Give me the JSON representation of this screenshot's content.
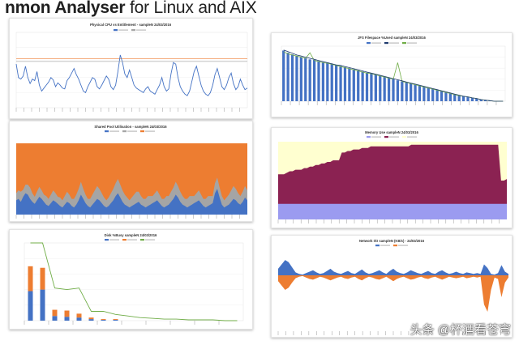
{
  "header": {
    "title_bold": "nmon Analyser",
    "title_rest": " for Linux and AIX"
  },
  "watermark": "头条 @杯酒看苍穹",
  "colors": {
    "blue": "#4472c4",
    "orange": "#ed7d31",
    "gray": "#a5a5a5",
    "green": "#70ad47",
    "maroon": "#8b2252",
    "cream": "#ffffd0",
    "lavender": "#9b9bf0"
  },
  "chart_data": [
    {
      "id": "cpu",
      "type": "line",
      "title": "Physical CPU vs Entitlement - sampleN 24/03/2016",
      "ylim": [
        0,
        100
      ],
      "series": [
        {
          "color": "#4472c4",
          "values": [
            58,
            40,
            38,
            42,
            55,
            40,
            32,
            38,
            36,
            48,
            30,
            22,
            26,
            30,
            34,
            40,
            37,
            28,
            33,
            30,
            26,
            25,
            36,
            40,
            46,
            52,
            44,
            38,
            30,
            22,
            20,
            28,
            34,
            40,
            38,
            28,
            25,
            30,
            36,
            42,
            38,
            28,
            24,
            30,
            48,
            70,
            60,
            45,
            40,
            50,
            40,
            30,
            26,
            24,
            22,
            20,
            25,
            28,
            22,
            20,
            18,
            24,
            30,
            40,
            28,
            22,
            25,
            45,
            60,
            58,
            40,
            28,
            22,
            18,
            16,
            22,
            35,
            48,
            55,
            42,
            30,
            22,
            18,
            16,
            20,
            30,
            44,
            52,
            40,
            28,
            24,
            30,
            40,
            46,
            32,
            24,
            28,
            38,
            30,
            24,
            26
          ]
        },
        {
          "color": "#a5a5a5",
          "values": [
            62,
            62,
            62,
            62,
            62,
            62,
            62,
            62,
            62,
            62,
            62,
            62,
            62,
            62,
            62,
            62,
            62,
            62,
            62,
            62,
            62,
            62,
            62,
            62,
            62,
            62,
            62,
            62,
            62,
            62,
            62,
            62,
            62,
            62,
            62,
            62,
            62,
            62,
            62,
            62,
            62,
            62,
            62,
            62,
            62,
            62,
            62,
            62,
            62,
            62,
            62,
            62,
            62,
            62,
            62,
            62,
            62,
            62,
            62,
            62,
            62,
            62,
            62,
            62,
            62,
            62,
            62,
            62,
            62,
            62,
            62,
            62,
            62,
            62,
            62,
            62,
            62,
            62,
            62,
            62,
            62,
            62,
            62,
            62,
            62,
            62,
            62,
            62,
            62,
            62,
            62,
            62,
            62,
            62,
            62,
            62,
            62,
            62,
            62,
            62,
            62
          ]
        }
      ]
    },
    {
      "id": "jfs",
      "type": "bar",
      "title": "JFS Filespace %Used sampleN 24/03/2016",
      "ylim": [
        0,
        100
      ],
      "bar_color": "#4472c4",
      "line_colors": [
        "#1f3b6e",
        "#70ad47"
      ],
      "values": [
        92,
        88,
        85,
        82,
        80,
        78,
        76,
        75,
        73,
        71,
        70,
        68,
        66,
        64,
        62,
        60,
        58,
        56,
        54,
        52,
        50,
        48,
        46,
        44,
        42,
        40,
        38,
        36,
        34,
        32,
        30,
        28,
        26,
        24,
        22,
        20,
        18,
        16,
        14,
        12,
        10,
        9,
        8,
        6,
        5,
        3,
        2,
        1,
        0,
        0,
        0
      ],
      "line_values": [
        93,
        90,
        87,
        84,
        82,
        80,
        78,
        76,
        74,
        72,
        70,
        68,
        66,
        65,
        63,
        61,
        59,
        57,
        55,
        53,
        51,
        49,
        47,
        45,
        43,
        41,
        39,
        37,
        35,
        33,
        31,
        29,
        27,
        25,
        23,
        21,
        19,
        17,
        15,
        13,
        11,
        9,
        8,
        6,
        5,
        3,
        2,
        1,
        0,
        0,
        0
      ],
      "line2_values": [
        90,
        86,
        84,
        82,
        80,
        78,
        88,
        74,
        72,
        70,
        69,
        67,
        65,
        63,
        61,
        59,
        57,
        55,
        53,
        51,
        50,
        48,
        46,
        44,
        42,
        40,
        70,
        36,
        34,
        32,
        30,
        28,
        26,
        24,
        22,
        20,
        18,
        16,
        14,
        12,
        10,
        9,
        8,
        6,
        5,
        3,
        2,
        1,
        0,
        0,
        0
      ]
    },
    {
      "id": "pool",
      "type": "area",
      "title": "Shared Pool Utilisation - sampleN 24/03/2016",
      "ylim": [
        0,
        100
      ],
      "colors": [
        "#4472c4",
        "#a5a5a5",
        "#ed7d31"
      ],
      "blue_values": [
        20,
        22,
        18,
        25,
        30,
        28,
        22,
        18,
        15,
        20,
        25,
        22,
        18,
        14,
        12,
        16,
        20,
        18,
        15,
        12,
        10,
        14,
        18,
        16,
        12,
        10,
        14,
        20,
        28,
        22,
        16,
        12,
        10,
        14,
        18,
        22,
        20,
        16,
        12,
        10,
        12,
        16,
        20,
        26,
        30,
        24,
        18,
        14,
        12,
        10,
        12,
        14,
        16,
        18,
        14,
        12,
        10,
        12,
        14,
        16,
        18,
        20,
        16,
        12,
        10,
        12,
        14,
        18,
        22,
        28,
        24,
        18,
        14,
        12,
        10,
        12,
        14,
        16,
        18,
        20,
        16,
        12,
        10,
        12,
        14,
        16,
        30,
        36,
        24,
        14,
        10,
        12,
        14,
        18,
        22,
        20,
        16,
        14,
        18,
        24,
        20
      ],
      "gray_values": [
        10,
        12,
        14,
        10,
        12,
        14,
        16,
        12,
        10,
        12,
        14,
        12,
        10,
        12,
        10,
        12,
        14,
        12,
        10,
        12,
        10,
        12,
        14,
        12,
        10,
        12,
        14,
        16,
        18,
        14,
        12,
        10,
        12,
        14,
        16,
        18,
        16,
        14,
        12,
        10,
        12,
        14,
        16,
        18,
        20,
        18,
        16,
        14,
        12,
        10,
        12,
        14,
        16,
        14,
        12,
        10,
        12,
        14,
        12,
        10,
        12,
        14,
        12,
        10,
        12,
        14,
        12,
        14,
        16,
        18,
        16,
        14,
        12,
        10,
        12,
        14,
        12,
        10,
        12,
        14,
        12,
        10,
        12,
        14,
        12,
        10,
        14,
        16,
        14,
        12,
        10,
        12,
        14,
        16,
        18,
        16,
        14,
        12,
        14,
        16,
        14
      ]
    },
    {
      "id": "mem",
      "type": "area",
      "title": "Memory Use sampleN 24/03/2016",
      "ylim": [
        0,
        100
      ],
      "colors": [
        "#9b9bf0",
        "#8b2252",
        "#ffffd0"
      ],
      "lavender_values": [
        20,
        20,
        20,
        20,
        20,
        20,
        20,
        20,
        20,
        20,
        20,
        20,
        20,
        20,
        20,
        20,
        20,
        20,
        20,
        20,
        20,
        20,
        20,
        20,
        20,
        20,
        20,
        20,
        20,
        20,
        20,
        20,
        20,
        20,
        20,
        20,
        20,
        20,
        20,
        20,
        20,
        20,
        20,
        20,
        20,
        20,
        20,
        20,
        20,
        20,
        20,
        20,
        20,
        20,
        20,
        20,
        20,
        20,
        20,
        20,
        20,
        20,
        20,
        20,
        20,
        20,
        20,
        20,
        20,
        20,
        20,
        20,
        20,
        20,
        20,
        20,
        20,
        20,
        20,
        20
      ],
      "maroon_total": [
        58,
        58,
        58,
        60,
        62,
        62,
        64,
        64,
        64,
        66,
        66,
        68,
        68,
        70,
        70,
        72,
        72,
        74,
        74,
        76,
        76,
        76,
        86,
        86,
        88,
        88,
        90,
        90,
        90,
        92,
        92,
        92,
        94,
        94,
        94,
        94,
        94,
        94,
        94,
        94,
        94,
        94,
        94,
        94,
        94,
        94,
        96,
        96,
        96,
        96,
        96,
        96,
        96,
        96,
        96,
        96,
        96,
        96,
        96,
        96,
        96,
        96,
        96,
        96,
        96,
        96,
        96,
        96,
        96,
        96,
        96,
        96,
        96,
        96,
        96,
        96,
        96,
        50,
        50,
        52
      ]
    },
    {
      "id": "disk",
      "type": "bar",
      "title": "Disk %Busy sampleN 24/03/2016",
      "ylim": [
        0,
        100
      ],
      "colors": [
        "#4472c4",
        "#ed7d31",
        "#70ad47"
      ],
      "blue_values": [
        38,
        40,
        6,
        5,
        4,
        2,
        1,
        1,
        0,
        0,
        0,
        0,
        0,
        0,
        0,
        0,
        0,
        0
      ],
      "orange_values": [
        32,
        28,
        8,
        8,
        5,
        2,
        1,
        1,
        0,
        0,
        0,
        0,
        0,
        0,
        0,
        0,
        0,
        0
      ],
      "line_values": [
        100,
        100,
        42,
        40,
        42,
        12,
        12,
        8,
        6,
        4,
        3,
        2,
        2,
        1,
        1,
        1,
        0,
        0
      ]
    },
    {
      "id": "net",
      "type": "area",
      "title": "Network I/O sampleN (KB/s) - 24/03/2016",
      "colors": [
        "#4472c4",
        "#ed7d31"
      ],
      "read_values": [
        18,
        30,
        42,
        36,
        22,
        8,
        4,
        2,
        6,
        10,
        14,
        8,
        4,
        6,
        12,
        18,
        10,
        6,
        4,
        8,
        12,
        6,
        4,
        10,
        16,
        8,
        4,
        6,
        10,
        14,
        8,
        4,
        12,
        18,
        10,
        6,
        4,
        8,
        14,
        10,
        6,
        4,
        8,
        12,
        6,
        4,
        10,
        14,
        8,
        4,
        6,
        10,
        6,
        4,
        8,
        6,
        4,
        6,
        4,
        30,
        20,
        4,
        2,
        6,
        28,
        10,
        4
      ],
      "write_values": [
        -16,
        -28,
        -40,
        -34,
        -20,
        -8,
        -4,
        -2,
        -6,
        -10,
        -12,
        -8,
        -4,
        -6,
        -10,
        -14,
        -10,
        -6,
        -4,
        -8,
        -10,
        -6,
        -4,
        -10,
        -14,
        -8,
        -4,
        -6,
        -10,
        -12,
        -8,
        -4,
        -10,
        -16,
        -10,
        -6,
        -4,
        -8,
        -12,
        -10,
        -6,
        -4,
        -8,
        -10,
        -6,
        -4,
        -8,
        -12,
        -8,
        -4,
        -6,
        -8,
        -6,
        -4,
        -8,
        -6,
        -4,
        -6,
        -4,
        -80,
        -100,
        -40,
        -6,
        -10,
        -60,
        -20,
        -6
      ]
    }
  ]
}
